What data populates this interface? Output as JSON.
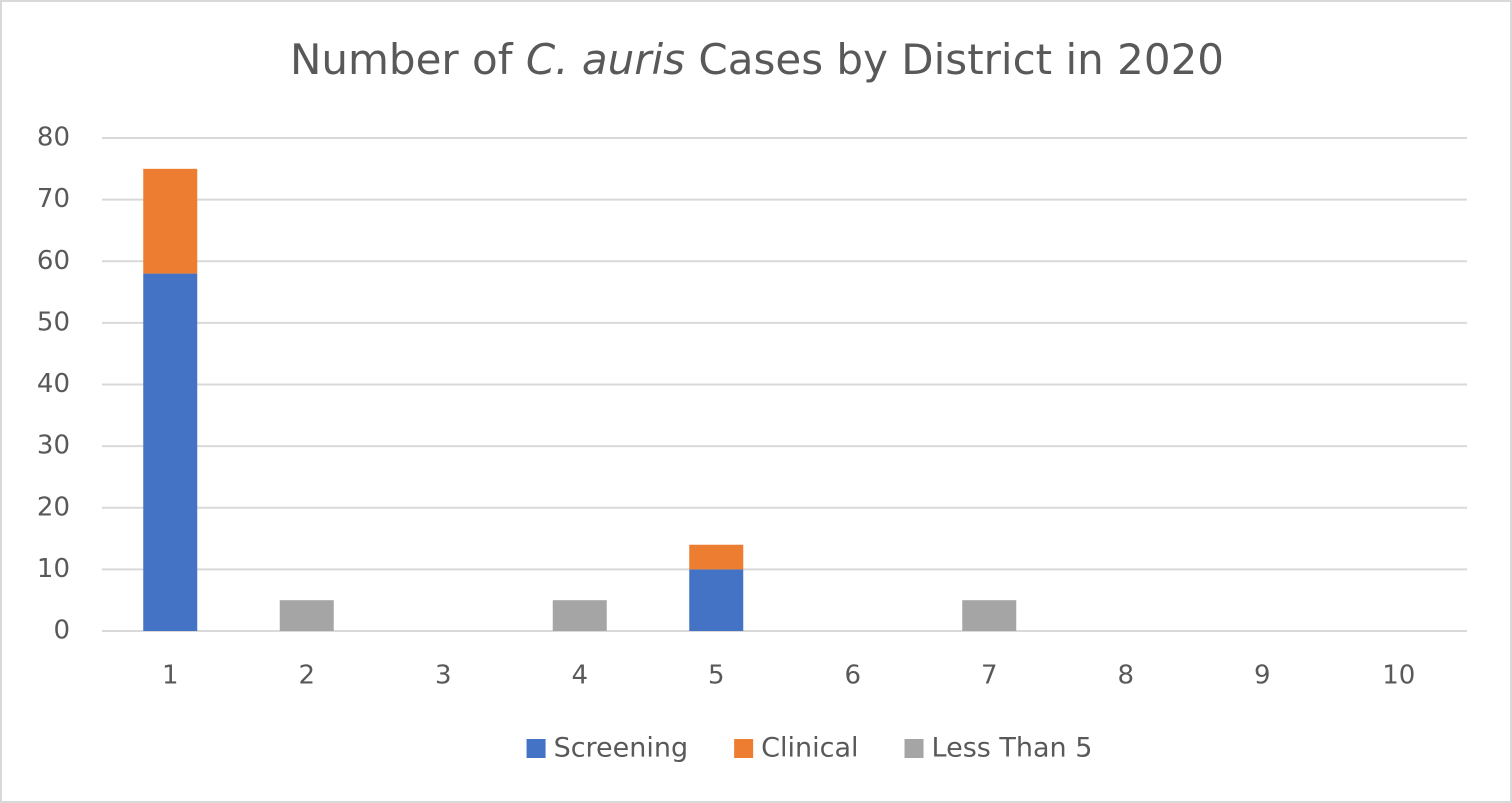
{
  "chart_data": {
    "type": "stacked_bar",
    "title": [
      {
        "text": "Number of "
      },
      {
        "text": "C. auris",
        "italic": true
      },
      {
        "text": " Cases by District in 2020"
      }
    ],
    "categories": [
      "1",
      "2",
      "3",
      "4",
      "5",
      "6",
      "7",
      "8",
      "9",
      "10"
    ],
    "series": [
      {
        "name": "Screening",
        "color": "#4472c4",
        "values": [
          58,
          0,
          0,
          0,
          10,
          0,
          0,
          0,
          0,
          0
        ]
      },
      {
        "name": "Clinical",
        "color": "#ed7d31",
        "values": [
          17,
          0,
          0,
          0,
          4,
          0,
          0,
          0,
          0,
          0
        ]
      },
      {
        "name": "Less Than 5",
        "color": "#a5a5a5",
        "values": [
          0,
          5,
          0,
          5,
          0,
          0,
          5,
          0,
          0,
          0
        ]
      }
    ],
    "ylim": [
      0,
      80
    ],
    "yticks": [
      0,
      10,
      20,
      30,
      40,
      50,
      60,
      70,
      80
    ],
    "grid": true,
    "legend": "bottom"
  }
}
